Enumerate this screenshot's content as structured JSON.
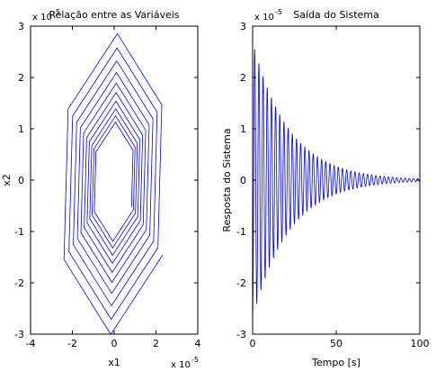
{
  "chart_data": [
    {
      "type": "line",
      "title": "Relação entre as Variáveis",
      "xlabel": "x1",
      "ylabel": "x2",
      "x_exponent": "x 10",
      "x_exponent_power": "-5",
      "y_exponent": "x 10",
      "y_exponent_power": "-5",
      "xlim": [
        -4,
        4
      ],
      "ylim": [
        -3,
        3
      ],
      "x_ticks": [
        "-4",
        "-2",
        "0",
        "2",
        "4"
      ],
      "y_ticks": [
        "3",
        "2",
        "1",
        "0",
        "-1",
        "-2",
        "-3"
      ],
      "grid": false,
      "series": [
        {
          "color": "#0000ff",
          "spiral": {
            "turns": 10,
            "points_per_turn": 6,
            "start_angle_deg": -10,
            "decay_per_step": 0.983,
            "a": 2.55,
            "b": 2.9,
            "e": 0.38
          }
        }
      ]
    },
    {
      "type": "line",
      "title": "Saída do Sistema",
      "xlabel": "Tempo [s]",
      "ylabel": "Resposta do Sistema",
      "y_exponent": "x 10",
      "y_exponent_power": "-5",
      "xlim": [
        0,
        100
      ],
      "ylim": [
        -3,
        3
      ],
      "x_ticks": [
        "0",
        "50",
        "100"
      ],
      "y_ticks": [
        "3",
        "2",
        "1",
        "0",
        "-1",
        "-2",
        "-3"
      ],
      "grid": false,
      "series": [
        {
          "color": "#0000ff",
          "response": {
            "amplitude": 2.7,
            "period": 2.5,
            "decay_rate": 0.046,
            "t_start": 0,
            "t_end": 100
          }
        }
      ]
    }
  ]
}
